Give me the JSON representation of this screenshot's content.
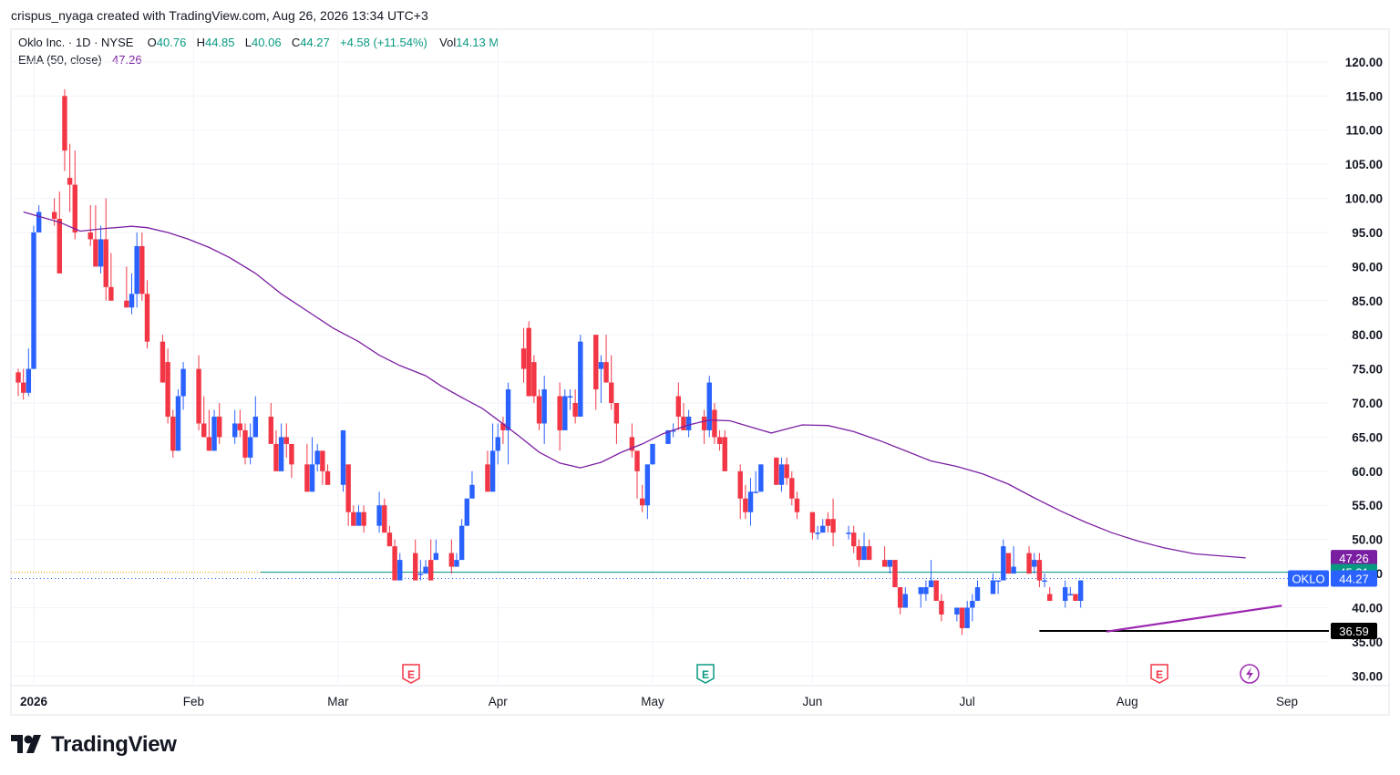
{
  "credit": "crispus_nyaga created with TradingView.com, Aug 26, 2026 13:34 UTC+3",
  "brand": "TradingView",
  "legend": {
    "symbol": "Oklo Inc. · 1D · NYSE",
    "open_label": "O",
    "open": "40.76",
    "high_label": "H",
    "high": "44.85",
    "low_label": "L",
    "low": "40.06",
    "close_label": "C",
    "close": "44.27",
    "change": "+4.58 (+11.54%)",
    "vol_label": "Vol",
    "volume": "14.13 M",
    "ema_label": "EMA (50, close)",
    "ema_value": "47.26"
  },
  "colors": {
    "up": "#2962ff",
    "down": "#f23645",
    "ema": "#7b1fa2",
    "trendline": "#9c27b0",
    "support": "#000000",
    "green": "#089981"
  },
  "chart_data": {
    "type": "candlestick",
    "symbol": "OKLO",
    "timeframe": "1D",
    "ylim": [
      28.5,
      123
    ],
    "y_ticks": [
      "30.00",
      "35.00",
      "40.00",
      "45.00",
      "50.00",
      "55.00",
      "60.00",
      "65.00",
      "70.00",
      "75.00",
      "80.00",
      "85.00",
      "90.00",
      "95.00",
      "100.00",
      "105.00",
      "110.00",
      "115.00",
      "120.00"
    ],
    "x_ticks": [
      "2026",
      "Feb",
      "Mar",
      "Apr",
      "May",
      "Jun",
      "Jul",
      "Aug",
      "Sep"
    ],
    "candles": [
      [
        74.5,
        73,
        75,
        71
      ],
      [
        73,
        71.5,
        75,
        70.5
      ],
      [
        71.5,
        75,
        78,
        71
      ],
      [
        75,
        95,
        96,
        80.5
      ],
      [
        95,
        98,
        99,
        95
      ],
      [
        98,
        97,
        100,
        96
      ],
      [
        97,
        89,
        101,
        95
      ],
      [
        115,
        107,
        116,
        104
      ],
      [
        103,
        102,
        108,
        98
      ],
      [
        102,
        95,
        107,
        94
      ],
      [
        95,
        94,
        99,
        93
      ],
      [
        94,
        90,
        99,
        90
      ],
      [
        90,
        94,
        96,
        89
      ],
      [
        94,
        87,
        100,
        85
      ],
      [
        87,
        85,
        92,
        86
      ],
      [
        85,
        84,
        90,
        84
      ],
      [
        84,
        86,
        89,
        83
      ],
      [
        86,
        93,
        95,
        84
      ],
      [
        93,
        86,
        95,
        85
      ],
      [
        86,
        79,
        88,
        78
      ],
      [
        79,
        73,
        80,
        74
      ],
      [
        76,
        68,
        78,
        67
      ],
      [
        68,
        63,
        69,
        62
      ],
      [
        63,
        71,
        72,
        64
      ],
      [
        71,
        75,
        76,
        69
      ],
      [
        75,
        67,
        77,
        66
      ],
      [
        67,
        65,
        71,
        65
      ],
      [
        65,
        63,
        69,
        64
      ],
      [
        63,
        68,
        69,
        63
      ],
      [
        68,
        65,
        70,
        64
      ],
      [
        65,
        67,
        69,
        64
      ],
      [
        67,
        66,
        69,
        65
      ],
      [
        66,
        62,
        67,
        61
      ],
      [
        62,
        65,
        67,
        61
      ],
      [
        65,
        68,
        71,
        67
      ],
      [
        68,
        64,
        70,
        64
      ],
      [
        64,
        60,
        66,
        61
      ],
      [
        60,
        65,
        67,
        60
      ],
      [
        65,
        64,
        67,
        62
      ],
      [
        64,
        61,
        64,
        59
      ],
      [
        61,
        57,
        64,
        57
      ],
      [
        57,
        61,
        65,
        57
      ],
      [
        61,
        63,
        64,
        60
      ],
      [
        63,
        60,
        63,
        58
      ],
      [
        60,
        58,
        61,
        58
      ],
      [
        58,
        66,
        66,
        57
      ],
      [
        61,
        54,
        61,
        52
      ],
      [
        54,
        52,
        55,
        52
      ],
      [
        52,
        54,
        55,
        52
      ],
      [
        54,
        52,
        55,
        51
      ],
      [
        52,
        55,
        57,
        51
      ],
      [
        55,
        51,
        56,
        51
      ],
      [
        51,
        49,
        52,
        49
      ],
      [
        49,
        44,
        50,
        44
      ],
      [
        44,
        47,
        48,
        45
      ],
      [
        48,
        44,
        50,
        45
      ],
      [
        45,
        45,
        47,
        44
      ],
      [
        45,
        46,
        47,
        45
      ],
      [
        47,
        44,
        50,
        44
      ],
      [
        47,
        48,
        50,
        47
      ],
      [
        48,
        46,
        50,
        45
      ],
      [
        46,
        47,
        48,
        46
      ],
      [
        47,
        52,
        53,
        47
      ],
      [
        52,
        56,
        56,
        56
      ],
      [
        56,
        58,
        60,
        58
      ],
      [
        61,
        57,
        63,
        58
      ],
      [
        57,
        63,
        67,
        61
      ],
      [
        63,
        65,
        67,
        61
      ],
      [
        67,
        66,
        68,
        64
      ],
      [
        66,
        72,
        73,
        61
      ],
      [
        78,
        75,
        81,
        73
      ],
      [
        81,
        71,
        82,
        71
      ],
      [
        76,
        71,
        77,
        70
      ],
      [
        71,
        67,
        72,
        66
      ],
      [
        67,
        72,
        74,
        64
      ],
      [
        71,
        66,
        73,
        63
      ],
      [
        66,
        71,
        72,
        66
      ],
      [
        71,
        71,
        72,
        69
      ],
      [
        70,
        68,
        72,
        67
      ],
      [
        68,
        79,
        80,
        69
      ],
      [
        80,
        72,
        80,
        69
      ],
      [
        75,
        76,
        77,
        70
      ],
      [
        76,
        73,
        80,
        73
      ],
      [
        73,
        70,
        77,
        69
      ],
      [
        70,
        67,
        70,
        64
      ],
      [
        65,
        63,
        67,
        62
      ],
      [
        63,
        60,
        61,
        56
      ],
      [
        56,
        55,
        58,
        54
      ],
      [
        55,
        61,
        61,
        53
      ],
      [
        61,
        64,
        64,
        64
      ],
      [
        64,
        66,
        66,
        65
      ],
      [
        66,
        66,
        67,
        65
      ],
      [
        71,
        68,
        73,
        66
      ],
      [
        68,
        66,
        70,
        66
      ],
      [
        66,
        68,
        69,
        65
      ],
      [
        68,
        66,
        69,
        64
      ],
      [
        66,
        73,
        74,
        65
      ],
      [
        69,
        65,
        70,
        64
      ],
      [
        65,
        64,
        66,
        63
      ],
      [
        65,
        60,
        66,
        60
      ],
      [
        60,
        56,
        61,
        53
      ],
      [
        56,
        54,
        58,
        53
      ],
      [
        54,
        57,
        59,
        52
      ],
      [
        57,
        57,
        60,
        57
      ],
      [
        57,
        61,
        61,
        58
      ],
      [
        62,
        58,
        62,
        59
      ],
      [
        58,
        61,
        62,
        57
      ],
      [
        61,
        59,
        62,
        58
      ],
      [
        59,
        56,
        60,
        55
      ],
      [
        56,
        54,
        57,
        53
      ],
      [
        54,
        51,
        54,
        50
      ],
      [
        51,
        51,
        52,
        50
      ],
      [
        51,
        52,
        53,
        52
      ],
      [
        53,
        52,
        54,
        51
      ],
      [
        53,
        51,
        56,
        49
      ],
      [
        51,
        51,
        52,
        50
      ],
      [
        51,
        49,
        52,
        48
      ],
      [
        49,
        47,
        50,
        46
      ],
      [
        47,
        49,
        51,
        47
      ],
      [
        49,
        47,
        50,
        47
      ],
      [
        47,
        46,
        49,
        46
      ],
      [
        46,
        47,
        47,
        45
      ],
      [
        47,
        43,
        46,
        43
      ],
      [
        43,
        40,
        43,
        39
      ],
      [
        40,
        42,
        43,
        40
      ],
      [
        42,
        43,
        42,
        40
      ],
      [
        42,
        43,
        44,
        41
      ],
      [
        43,
        44,
        47,
        43
      ],
      [
        44,
        41,
        44,
        41
      ],
      [
        41,
        39,
        42,
        38
      ],
      [
        39,
        40,
        40,
        38
      ],
      [
        40,
        37,
        40,
        36
      ],
      [
        37,
        40,
        41,
        37
      ],
      [
        40,
        41,
        42,
        38
      ],
      [
        41,
        43,
        44,
        41
      ],
      [
        42,
        44,
        45,
        43
      ],
      [
        44,
        44,
        44,
        42
      ],
      [
        44,
        49,
        50,
        44
      ],
      [
        48,
        45,
        48,
        45
      ],
      [
        45,
        46,
        49,
        45
      ],
      [
        48,
        45,
        49,
        45
      ],
      [
        46,
        47,
        48,
        45
      ],
      [
        47,
        44,
        48,
        43
      ],
      [
        44,
        44,
        45,
        43
      ],
      [
        42,
        41,
        43,
        41
      ],
      [
        41,
        43,
        44,
        40
      ],
      [
        42,
        42,
        43,
        42
      ],
      [
        42,
        41,
        42,
        41
      ],
      [
        41,
        44,
        44,
        40
      ]
    ],
    "ema_50": [
      98,
      96.5,
      95.2,
      95.6,
      95.9,
      95.7,
      95,
      94,
      92.8,
      91.3,
      89,
      86,
      83.5,
      81,
      79,
      77,
      75.5,
      74,
      72.5,
      70.8,
      69.2,
      67.5,
      65.2,
      62.8,
      61.2,
      60.5,
      61.3,
      62.8,
      64,
      65.5,
      66.8,
      67.5,
      67.4,
      66.5,
      65.6,
      66.8,
      66.7,
      65.8,
      64.5,
      63,
      61.5,
      60.7,
      59.6,
      58.1,
      56.1,
      54.2,
      52.5,
      51,
      49.8,
      48.8,
      47.9,
      47.3
    ],
    "ema_x_dates": [
      "2025-12-30",
      "2026-01-06",
      "2026-01-10",
      "2026-01-15",
      "2026-01-20",
      "2026-01-23",
      "2026-01-27",
      "2026-01-31",
      "2026-02-04",
      "2026-02-08",
      "2026-02-13",
      "2026-02-18",
      "2026-02-23",
      "2026-02-28",
      "2026-03-05",
      "2026-03-09",
      "2026-03-13",
      "2026-03-18",
      "2026-03-21",
      "2026-03-25",
      "2026-03-29",
      "2026-04-01",
      "2026-04-05",
      "2026-04-09",
      "2026-04-13",
      "2026-04-17",
      "2026-04-21",
      "2026-04-25",
      "2026-04-29",
      "2026-05-03",
      "2026-05-08",
      "2026-05-12",
      "2026-05-16",
      "2026-05-20",
      "2026-05-24",
      "2026-05-30",
      "2026-06-04",
      "2026-06-09",
      "2026-06-14",
      "2026-06-19",
      "2026-06-24",
      "2026-06-29",
      "2026-07-04",
      "2026-07-09",
      "2026-07-14",
      "2026-07-19",
      "2026-07-24",
      "2026-07-29",
      "2026-08-03",
      "2026-08-08",
      "2026-08-14",
      "2026-08-24"
    ],
    "support_level": 36.59,
    "green_line": 45.21,
    "last_price": 44.27,
    "price_labels": [
      {
        "text": "47.26",
        "color": "#7b1fa2"
      },
      {
        "text": "45.21",
        "color": "#089981"
      },
      {
        "ticker": "OKLO",
        "text": "44.27",
        "color": "#2962ff"
      },
      {
        "text": "36.59",
        "color": "#000000"
      }
    ],
    "trendline": {
      "from": [
        "2026-07-28",
        36.5
      ],
      "to": [
        "2026-08-31",
        40.3
      ]
    },
    "earnings_markers": [
      "E",
      "E",
      "E"
    ]
  }
}
